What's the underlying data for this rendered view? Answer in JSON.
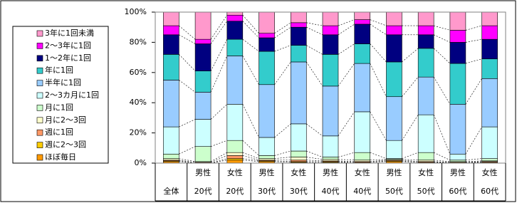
{
  "chart_data": {
    "type": "stacked_bar_100",
    "categories": [
      "全体",
      "男性\n20代",
      "女性\n20代",
      "男性\n30代",
      "女性\n30代",
      "男性\n40代",
      "女性\n40代",
      "男性\n50代",
      "女性\n50代",
      "男性\n60代",
      "女性\n60代"
    ],
    "series": [
      {
        "name": "ほぼ毎日",
        "color": "#ff9900",
        "values": [
          1,
          0,
          2,
          1,
          0.5,
          0.5,
          0.5,
          1,
          0.5,
          0.5,
          0.5
        ]
      },
      {
        "name": "週に2～3回",
        "color": "#ffcc00",
        "values": [
          0.5,
          0,
          1,
          0.5,
          0.5,
          0.5,
          0,
          0.5,
          0,
          0,
          0
        ]
      },
      {
        "name": "週に1回",
        "color": "#ff9966",
        "values": [
          0.5,
          0.5,
          2,
          0.5,
          1,
          0.5,
          0.5,
          0.5,
          0.5,
          0,
          0.5
        ]
      },
      {
        "name": "月に2～3回",
        "color": "#ffffcc",
        "values": [
          1,
          0.5,
          2,
          1,
          2,
          1,
          1,
          0.5,
          1,
          0.5,
          0.5
        ]
      },
      {
        "name": "月に1回",
        "color": "#ccffcc",
        "values": [
          3,
          10,
          8,
          2,
          4,
          1.5,
          5,
          0.5,
          5,
          1,
          1.5
        ]
      },
      {
        "name": "2～3カ月に1回",
        "color": "#ccffff",
        "values": [
          18,
          18,
          24,
          12,
          18,
          14,
          27,
          12,
          25,
          4,
          21
        ]
      },
      {
        "name": "半年に1回",
        "color": "#99ccff",
        "values": [
          31,
          18,
          32,
          35,
          41,
          33,
          32,
          29,
          25,
          33,
          32
        ]
      },
      {
        "name": "年に1回",
        "color": "#33cccc",
        "values": [
          17,
          14,
          11,
          22,
          11,
          21,
          13,
          23,
          19,
          27,
          13
        ]
      },
      {
        "name": "1～2年に1回",
        "color": "#000080",
        "values": [
          13,
          18,
          12,
          9,
          12,
          13,
          13,
          18,
          9,
          14,
          13
        ]
      },
      {
        "name": "2～3年に1回",
        "color": "#ff00ff",
        "values": [
          6,
          3,
          4,
          3,
          3,
          6,
          3,
          6,
          6,
          8,
          9
        ]
      },
      {
        "name": "3年に1回未満",
        "color": "#ff99cc",
        "values": [
          9,
          18,
          2,
          14,
          7,
          9,
          5,
          9,
          9,
          12,
          9
        ]
      }
    ],
    "ylim": [
      0,
      100
    ],
    "yticks": [
      {
        "value": 0,
        "label": "0%"
      },
      {
        "value": 20,
        "label": "20%"
      },
      {
        "value": 40,
        "label": "40%"
      },
      {
        "value": 60,
        "label": "60%"
      },
      {
        "value": 80,
        "label": "80%"
      },
      {
        "value": 100,
        "label": "100%"
      }
    ],
    "grid": false
  }
}
